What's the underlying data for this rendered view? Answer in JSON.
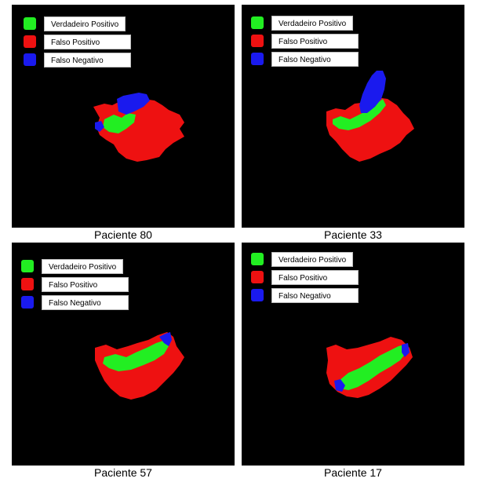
{
  "legend": [
    {
      "label": "Verdadeiro Positivo",
      "color": "#22ee22"
    },
    {
      "label": "Falso Positivo",
      "color": "#ee1111"
    },
    {
      "label": "Falso Negativo",
      "color": "#1a1aee"
    }
  ],
  "panels": [
    {
      "caption": "Paciente 80"
    },
    {
      "caption": "Paciente 33"
    },
    {
      "caption": "Paciente 57"
    },
    {
      "caption": "Paciente 17"
    }
  ],
  "colors": {
    "background": "#000000",
    "true_positive": "#22ee22",
    "false_positive": "#ee1111",
    "false_negative": "#1a1aee"
  }
}
